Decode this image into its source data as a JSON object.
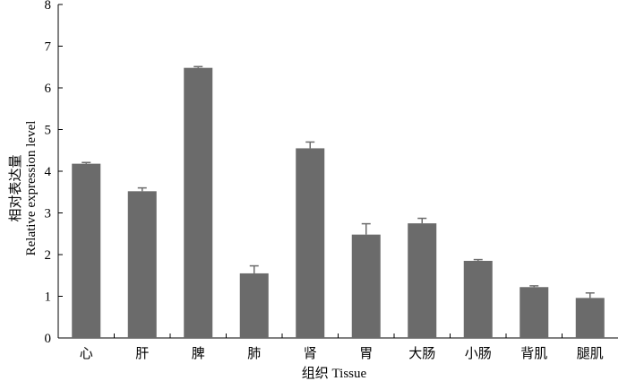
{
  "chart_data": {
    "type": "bar",
    "categories": [
      "心",
      "肝",
      "脾",
      "肺",
      "肾",
      "胃",
      "大肠",
      "小肠",
      "背肌",
      "腿肌"
    ],
    "values": [
      4.18,
      3.52,
      6.48,
      1.55,
      4.55,
      2.48,
      2.75,
      1.85,
      1.22,
      0.96
    ],
    "errors": [
      0.03,
      0.08,
      0.03,
      0.18,
      0.15,
      0.26,
      0.12,
      0.03,
      0.03,
      0.12
    ],
    "xlabel": "组织 Tissue",
    "ylabel_line1": "相对表达量",
    "ylabel_line2": "Relative expression level",
    "ylim": [
      0,
      8
    ],
    "yticks": [
      0,
      1,
      2,
      3,
      4,
      5,
      6,
      7,
      8
    ],
    "bar_color": "#6b6b6b",
    "grid": false
  }
}
